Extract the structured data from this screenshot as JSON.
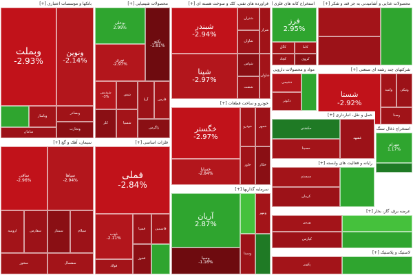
{
  "colors": {
    "deep_red": "#c1121a",
    "red": "#b3161c",
    "dark_red": "#8a0f14",
    "maroon": "#6e0b0f",
    "green": "#2fa52f",
    "bright_green": "#45c13c",
    "dark_green": "#1f7a25"
  },
  "sectors": [
    {
      "title": "بانکها و موسسات اعتباری [+]",
      "tiles": [
        {
          "symbol": "وبملت",
          "change": "-2.93%",
          "size": "xl",
          "color": "#c1121a"
        },
        {
          "symbol": "ونوین",
          "change": "-2.14%",
          "size": "l",
          "color": "#b3161c"
        },
        {
          "symbol": "",
          "change": "",
          "size": "s",
          "color": "#2fa52f"
        },
        {
          "symbol": "وپاسار",
          "change": "",
          "size": "s",
          "color": "#a31419"
        },
        {
          "symbol": "سامان",
          "change": "",
          "size": "s",
          "color": "#9c1218"
        },
        {
          "symbol": "وبصادر",
          "change": "",
          "size": "s",
          "color": "#a01318"
        },
        {
          "symbol": "وتجارت",
          "change": "",
          "size": "s",
          "color": "#8a0f14"
        }
      ]
    },
    {
      "title": "محصولات شیمیایی [+]",
      "tiles": [
        {
          "symbol": "بوعلی",
          "change": "2.99%",
          "size": "m",
          "color": "#2fa52f"
        },
        {
          "symbol": "نوری",
          "change": "-2.97%",
          "size": "m",
          "color": "#b3161c"
        },
        {
          "symbol": "پکنو",
          "change": "-1.81%",
          "size": "m",
          "color": "#6e0b0f"
        },
        {
          "symbol": "شپدیس",
          "change": "-3%",
          "size": "s",
          "color": "#b3161c"
        },
        {
          "symbol": "شفن",
          "change": "",
          "size": "s",
          "color": "#9c1218"
        },
        {
          "symbol": "کلر",
          "change": "",
          "size": "s",
          "color": "#8a0f14"
        },
        {
          "symbol": "شسپا",
          "change": "",
          "size": "s",
          "color": "#a31419"
        },
        {
          "symbol": "آریا",
          "change": "",
          "size": "s",
          "color": "#9c1218"
        },
        {
          "symbol": "فارس",
          "change": "",
          "size": "s",
          "color": "#a01318"
        },
        {
          "symbol": "زاگرس",
          "change": "",
          "size": "s",
          "color": "#8a0f14"
        }
      ]
    },
    {
      "title": "فراورده های نفتی، کک و سوخت هسته ای [+]",
      "tiles": [
        {
          "symbol": "شبندر",
          "change": "-2.94%",
          "size": "l",
          "color": "#c1121a"
        },
        {
          "symbol": "شپنا",
          "change": "-2.97%",
          "size": "l",
          "color": "#b3161c"
        },
        {
          "symbol": "شتران",
          "change": "",
          "size": "s",
          "color": "#a31419"
        },
        {
          "symbol": "شاوان",
          "change": "",
          "size": "s",
          "color": "#9c1218"
        },
        {
          "symbol": "شراز",
          "change": "",
          "size": "s",
          "color": "#a01318"
        },
        {
          "symbol": "شپاس",
          "change": "",
          "size": "s",
          "color": "#8a0f14"
        },
        {
          "symbol": "شنفت",
          "change": "",
          "size": "s",
          "color": "#9c1218"
        },
        {
          "symbol": "شاوان",
          "change": "",
          "size": "s",
          "color": "#a31419"
        }
      ]
    },
    {
      "title": "استخراج کانه های فلزی [+]",
      "tiles": [
        {
          "symbol": "فرز",
          "change": "2.95%",
          "size": "l",
          "color": "#2fa52f"
        },
        {
          "symbol": "کگل",
          "change": "",
          "size": "s",
          "color": "#a31419"
        },
        {
          "symbol": "کچاد",
          "change": "",
          "size": "s",
          "color": "#9c1218"
        },
        {
          "symbol": "کاما",
          "change": "",
          "size": "s",
          "color": "#a01318"
        },
        {
          "symbol": "کروی",
          "change": "",
          "size": "s",
          "color": "#8a0f14"
        }
      ]
    },
    {
      "title": "محصولات غذایی و آشامیدنی به جز قند و شکر [+]",
      "tiles": [
        {
          "symbol": "",
          "change": "",
          "size": "s",
          "color": "#a31419"
        },
        {
          "symbol": "",
          "change": "",
          "size": "s",
          "color": "#9c1218"
        },
        {
          "symbol": "",
          "change": "",
          "size": "s",
          "color": "#2fa52f"
        }
      ]
    },
    {
      "title": "مواد و محصولات دارویی [+]",
      "tiles": [
        {
          "symbol": "دشیمی",
          "change": "",
          "size": "s",
          "color": "#b3161c"
        },
        {
          "symbol": "دکوثر",
          "change": "",
          "size": "s",
          "color": "#a31419"
        },
        {
          "symbol": "",
          "change": "",
          "size": "s",
          "color": "#2fa52f"
        }
      ]
    },
    {
      "title": "شرکتهای چند رشته ای صنعتی [+]",
      "tiles": [
        {
          "symbol": "شستا",
          "change": "-2.92%",
          "size": "l",
          "color": "#c1121a"
        },
        {
          "symbol": "وامید",
          "change": "",
          "size": "s",
          "color": "#a31419"
        },
        {
          "symbol": "ونیکی",
          "change": "",
          "size": "s",
          "color": "#9c1218"
        },
        {
          "symbol": "وصنا",
          "change": "",
          "size": "s",
          "color": "#a01318"
        }
      ]
    },
    {
      "title": "سیمان، آهک و گچ [+]",
      "tiles": [
        {
          "symbol": "ساقی",
          "change": "-2.96%",
          "size": "m",
          "color": "#c1121a"
        },
        {
          "symbol": "سپاها",
          "change": "-2.94%",
          "size": "m",
          "color": "#b3161c"
        },
        {
          "symbol": "ارومیه",
          "change": "",
          "size": "s",
          "color": "#a31419"
        },
        {
          "symbol": "سفارس",
          "change": "",
          "size": "s",
          "color": "#9c1218"
        },
        {
          "symbol": "سخوز",
          "change": "",
          "size": "s",
          "color": "#a01318"
        },
        {
          "symbol": "سمتاز",
          "change": "",
          "size": "s",
          "color": "#8a0f14"
        },
        {
          "symbol": "سیلام",
          "change": "",
          "size": "s",
          "color": "#9c1218"
        },
        {
          "symbol": "سشمال",
          "change": "",
          "size": "s",
          "color": "#a31419"
        }
      ]
    },
    {
      "title": "فلزات اساسی [+]",
      "tiles": [
        {
          "symbol": "فملی",
          "change": "-2.84%",
          "size": "xl",
          "color": "#c1121a"
        },
        {
          "symbol": "ذوب",
          "change": "-2.11%",
          "size": "m",
          "color": "#b3161c"
        },
        {
          "symbol": "فولاد",
          "change": "",
          "size": "s",
          "color": "#a31419"
        },
        {
          "symbol": "فسپا",
          "change": "",
          "size": "s",
          "color": "#9c1218"
        },
        {
          "symbol": "فاسمین",
          "change": "",
          "size": "s",
          "color": "#a01318"
        },
        {
          "symbol": "فخوز",
          "change": "",
          "size": "s",
          "color": "#8a0f14"
        },
        {
          "symbol": "",
          "change": "",
          "size": "s",
          "color": "#2fa52f"
        }
      ]
    },
    {
      "title": "خودرو و ساخت قطعات [+]",
      "tiles": [
        {
          "symbol": "خگستر",
          "change": "-2.97%",
          "size": "l",
          "color": "#c1121a"
        },
        {
          "symbol": "خساپا",
          "change": "-2.84%",
          "size": "m",
          "color": "#b3161c"
        },
        {
          "symbol": "خودرو",
          "change": "",
          "size": "s",
          "color": "#a31419"
        },
        {
          "symbol": "خمهر",
          "change": "",
          "size": "s",
          "color": "#9c1218"
        },
        {
          "symbol": "خاور",
          "change": "",
          "size": "s",
          "color": "#a01318"
        },
        {
          "symbol": "خکار",
          "change": "",
          "size": "s",
          "color": "#8a0f14"
        }
      ]
    },
    {
      "title": "سرمایه گذاریها [+]",
      "tiles": [
        {
          "symbol": "آریان",
          "change": "2.87%",
          "size": "l",
          "color": "#2fa52f"
        },
        {
          "symbol": "وسپا",
          "change": "-1.16%",
          "size": "m",
          "color": "#6e0b0f"
        },
        {
          "symbol": "",
          "change": "",
          "size": "s",
          "color": "#45c13c"
        },
        {
          "symbol": "ومهر",
          "change": "",
          "size": "s",
          "color": "#a31419"
        },
        {
          "symbol": "وسینا",
          "change": "",
          "size": "s",
          "color": "#9c1218"
        },
        {
          "symbol": "",
          "change": "",
          "size": "s",
          "color": "#1f7a25"
        }
      ]
    },
    {
      "title": "استخراج ذغال سنگ [+]",
      "tiles": [
        {
          "symbol": "مهرام",
          "change": "1.17%",
          "size": "m",
          "color": "#2fa52f"
        },
        {
          "symbol": "",
          "change": "",
          "size": "s",
          "color": "#1f7a25"
        }
      ]
    },
    {
      "title": "حمل و نقل، انبارداری [+]",
      "tiles": [
        {
          "symbol": "حکشتی",
          "change": "",
          "size": "s",
          "color": "#1f7a25"
        },
        {
          "symbol": "حسینا",
          "change": "",
          "size": "s",
          "color": "#a31419"
        },
        {
          "symbol": "غشهد",
          "change": "",
          "size": "s",
          "color": "#9c1218"
        }
      ]
    },
    {
      "title": "رایانه و فعالیت های وابسته [+]",
      "tiles": [
        {
          "symbol": "سیستم",
          "change": "",
          "size": "s",
          "color": "#a31419"
        },
        {
          "symbol": "کرمان",
          "change": "",
          "size": "s",
          "color": "#9c1218"
        },
        {
          "symbol": "",
          "change": "",
          "size": "s",
          "color": "#2fa52f"
        }
      ]
    },
    {
      "title": "عرضه برق، گاز، بخار [+]",
      "tiles": [
        {
          "symbol": "بورس",
          "change": "",
          "size": "s",
          "color": "#a31419"
        },
        {
          "symbol": "کپارس",
          "change": "",
          "size": "s",
          "color": "#9c1218"
        },
        {
          "symbol": "",
          "change": "",
          "size": "s",
          "color": "#45c13c"
        },
        {
          "symbol": "",
          "change": "",
          "size": "s",
          "color": "#2fa52f"
        }
      ]
    },
    {
      "title": "لاستیک و پلاستیک [+]",
      "tiles": [
        {
          "symbol": "پکویر",
          "change": "",
          "size": "s",
          "color": "#a31419"
        },
        {
          "symbol": "",
          "change": "",
          "size": "s",
          "color": "#2fa52f"
        }
      ]
    }
  ]
}
